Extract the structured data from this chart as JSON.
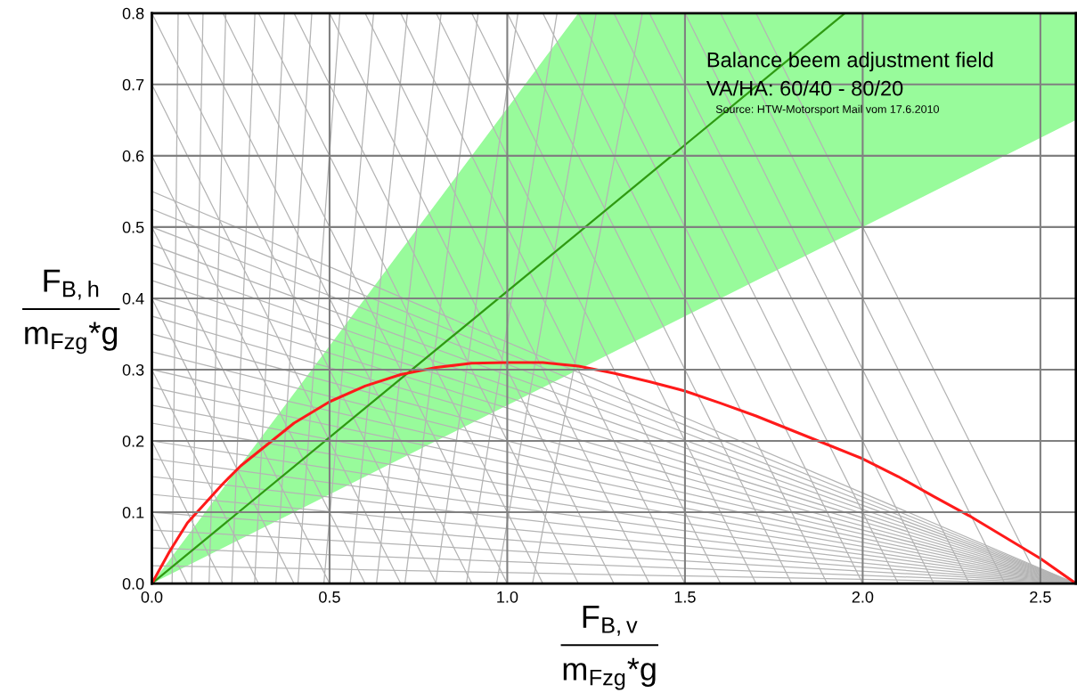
{
  "chart_data": {
    "type": "line",
    "xlabel": "F$_{B,v}$\nm$_{Fzg}$*g",
    "ylabel": "F$_{B,h}$\nm$_{Fzg}$*g",
    "annotations": [
      "Balance beem adjustment field",
      "VA/HA: 60/40 - 80/20",
      "Source: HTW-Motorsport Mail vom 17.6.2010"
    ],
    "xlim": [
      0,
      2.6
    ],
    "ylim": [
      0,
      0.8
    ],
    "xticks": [
      {
        "value": 0,
        "label": "0.0"
      },
      {
        "value": 0.5,
        "label": "0.5"
      },
      {
        "value": 1.0,
        "label": "1.0"
      },
      {
        "value": 1.5,
        "label": "1.5"
      },
      {
        "value": 2.0,
        "label": "2.0"
      },
      {
        "value": 2.5,
        "label": "2.5"
      }
    ],
    "yticks": [
      {
        "value": 0,
        "label": "0.0"
      },
      {
        "value": 0.1,
        "label": "0.1"
      },
      {
        "value": 0.2,
        "label": "0.2"
      },
      {
        "value": 0.3,
        "label": "0.3"
      },
      {
        "value": 0.4,
        "label": "0.4"
      },
      {
        "value": 0.5,
        "label": "0.5"
      },
      {
        "value": 0.6,
        "label": "0.6"
      },
      {
        "value": 0.7,
        "label": "0.7"
      },
      {
        "value": 0.8,
        "label": "0.8"
      }
    ],
    "grid": true,
    "marker": "none",
    "line_style": "solid",
    "series": [
      {
        "color": "#b4b4b4",
        "x": [
          0,
          2.6
        ],
        "values": [
          0.025,
          0
        ]
      },
      {
        "color": "#b4b4b4",
        "x": [
          0,
          2.6
        ],
        "values": [
          0.05,
          0
        ]
      },
      {
        "color": "#b4b4b4",
        "x": [
          0,
          2.6
        ],
        "values": [
          0.075,
          0
        ]
      },
      {
        "color": "#b4b4b4",
        "x": [
          0,
          2.6
        ],
        "values": [
          0.1,
          0
        ]
      },
      {
        "color": "#b4b4b4",
        "x": [
          0,
          2.6
        ],
        "values": [
          0.125,
          0
        ]
      },
      {
        "color": "#b4b4b4",
        "x": [
          0,
          2.6
        ],
        "values": [
          0.15,
          0
        ]
      },
      {
        "color": "#b4b4b4",
        "x": [
          0,
          2.6
        ],
        "values": [
          0.175,
          0
        ]
      },
      {
        "color": "#b4b4b4",
        "x": [
          0,
          2.6
        ],
        "values": [
          0.2,
          0
        ]
      },
      {
        "color": "#b4b4b4",
        "x": [
          0,
          2.6
        ],
        "values": [
          0.225,
          0
        ]
      },
      {
        "color": "#b4b4b4",
        "x": [
          0,
          2.6
        ],
        "values": [
          0.25,
          0
        ]
      },
      {
        "color": "#b4b4b4",
        "x": [
          0,
          2.6
        ],
        "values": [
          0.275,
          0
        ]
      },
      {
        "color": "#b4b4b4",
        "x": [
          0,
          2.6
        ],
        "values": [
          0.3,
          0
        ]
      },
      {
        "color": "#b4b4b4",
        "x": [
          0,
          2.6
        ],
        "values": [
          0.325,
          0
        ]
      },
      {
        "color": "#b4b4b4",
        "x": [
          0,
          2.6
        ],
        "values": [
          0.35,
          0
        ]
      },
      {
        "color": "#b4b4b4",
        "x": [
          0,
          2.6
        ],
        "values": [
          0.375,
          0
        ]
      },
      {
        "color": "#b4b4b4",
        "x": [
          0,
          2.6
        ],
        "values": [
          0.4,
          0
        ]
      },
      {
        "color": "#b4b4b4",
        "x": [
          0,
          2.6
        ],
        "values": [
          0.425,
          0
        ]
      },
      {
        "color": "#b4b4b4",
        "x": [
          0,
          2.6
        ],
        "values": [
          0.45,
          0
        ]
      },
      {
        "color": "#b4b4b4",
        "x": [
          0,
          2.6
        ],
        "values": [
          0.475,
          0
        ]
      },
      {
        "color": "#b4b4b4",
        "x": [
          0,
          2.6
        ],
        "values": [
          0.5,
          0
        ]
      },
      {
        "color": "#b4b4b4",
        "x": [
          0,
          2.6
        ],
        "values": [
          0.525,
          0
        ]
      },
      {
        "color": "#b4b4b4",
        "x": [
          0,
          2.6
        ],
        "values": [
          0.55,
          0
        ]
      },
      {
        "color": "#b4b4b4",
        "x": [
          0,
          0.1
        ],
        "values": [
          0.1,
          0
        ]
      },
      {
        "color": "#b4b4b4",
        "x": [
          0,
          0.2
        ],
        "values": [
          0.2,
          0
        ]
      },
      {
        "color": "#b4b4b4",
        "x": [
          0,
          0.3
        ],
        "values": [
          0.3,
          0
        ]
      },
      {
        "color": "#b4b4b4",
        "x": [
          0,
          0.4
        ],
        "values": [
          0.4,
          0
        ]
      },
      {
        "color": "#b4b4b4",
        "x": [
          0,
          0.5
        ],
        "values": [
          0.5,
          0
        ]
      },
      {
        "color": "#b4b4b4",
        "x": [
          0,
          0.6
        ],
        "values": [
          0.6,
          0
        ]
      },
      {
        "color": "#b4b4b4",
        "x": [
          0,
          0.7
        ],
        "values": [
          0.7,
          0
        ]
      },
      {
        "color": "#b4b4b4",
        "x": [
          0,
          0.8
        ],
        "values": [
          0.8,
          0
        ]
      },
      {
        "color": "#b4b4b4",
        "x": [
          0.1,
          0.9
        ],
        "values": [
          0.8,
          0
        ]
      },
      {
        "color": "#b4b4b4",
        "x": [
          0.2,
          1.0
        ],
        "values": [
          0.8,
          0
        ]
      },
      {
        "color": "#b4b4b4",
        "x": [
          0.3,
          1.1
        ],
        "values": [
          0.8,
          0
        ]
      },
      {
        "color": "#b4b4b4",
        "x": [
          0.4,
          1.2
        ],
        "values": [
          0.8,
          0
        ]
      },
      {
        "color": "#b4b4b4",
        "x": [
          0.5,
          1.3
        ],
        "values": [
          0.8,
          0
        ]
      },
      {
        "color": "#b4b4b4",
        "x": [
          0.6,
          1.4
        ],
        "values": [
          0.8,
          0
        ]
      },
      {
        "color": "#b4b4b4",
        "x": [
          0.7,
          1.5
        ],
        "values": [
          0.8,
          0
        ]
      },
      {
        "color": "#b4b4b4",
        "x": [
          0.8,
          1.6
        ],
        "values": [
          0.8,
          0
        ]
      },
      {
        "color": "#b4b4b4",
        "x": [
          0.9,
          1.7
        ],
        "values": [
          0.8,
          0
        ]
      },
      {
        "color": "#b4b4b4",
        "x": [
          1.0,
          1.8
        ],
        "values": [
          0.8,
          0
        ]
      },
      {
        "color": "#b4b4b4",
        "x": [
          1.1,
          1.9
        ],
        "values": [
          0.8,
          0
        ]
      },
      {
        "color": "#b4b4b4",
        "x": [
          1.2,
          2.0
        ],
        "values": [
          0.8,
          0
        ]
      },
      {
        "color": "#b4b4b4",
        "x": [
          1.3,
          2.1
        ],
        "values": [
          0.8,
          0
        ]
      },
      {
        "color": "#b4b4b4",
        "x": [
          1.4,
          2.2
        ],
        "values": [
          0.8,
          0
        ]
      },
      {
        "color": "#b4b4b4",
        "x": [
          1.5,
          2.3
        ],
        "values": [
          0.8,
          0
        ]
      },
      {
        "color": "#b4b4b4",
        "x": [
          1.6,
          2.4
        ],
        "values": [
          0.8,
          0
        ]
      },
      {
        "color": "#b4b4b4",
        "x": [
          1.7,
          2.5
        ],
        "values": [
          0.8,
          0
        ]
      },
      {
        "color": "#b4b4b4",
        "x": [
          0.057,
          0.074
        ],
        "values": [
          0,
          0.8
        ]
      },
      {
        "color": "#b4b4b4",
        "x": [
          0.112,
          0.144
        ],
        "values": [
          0,
          0.8
        ]
      },
      {
        "color": "#b4b4b4",
        "x": [
          0.161,
          0.208
        ],
        "values": [
          0,
          0.8
        ]
      },
      {
        "color": "#b4b4b4",
        "x": [
          0.225,
          0.29
        ],
        "values": [
          0,
          0.8
        ]
      },
      {
        "color": "#b4b4b4",
        "x": [
          0.289,
          0.373
        ],
        "values": [
          0,
          0.8
        ]
      },
      {
        "color": "#b4b4b4",
        "x": [
          0.349,
          0.45
        ],
        "values": [
          0,
          0.8
        ]
      },
      {
        "color": "#b4b4b4",
        "x": [
          0.411,
          0.529
        ],
        "values": [
          0,
          0.8
        ]
      },
      {
        "color": "#b4b4b4",
        "x": [
          0.484,
          0.624
        ],
        "values": [
          0,
          0.8
        ]
      },
      {
        "color": "#b4b4b4",
        "x": [
          0.558,
          0.719
        ],
        "values": [
          0,
          0.8
        ]
      },
      {
        "color": "#b4b4b4",
        "x": [
          0.632,
          0.814
        ],
        "values": [
          0,
          0.8
        ]
      },
      {
        "color": "#b4b4b4",
        "x": [
          0.712,
          0.918
        ],
        "values": [
          0,
          0.8
        ]
      },
      {
        "color": "#b4b4b4",
        "x": [
          0.799,
          1.03
        ],
        "values": [
          0,
          0.8
        ]
      },
      {
        "color": "#b4b4b4",
        "x": [
          0.885,
          1.14
        ],
        "values": [
          0,
          0.8
        ]
      },
      {
        "color": "#b4b4b4",
        "x": [
          0.97,
          1.25
        ],
        "values": [
          0,
          0.8
        ]
      },
      {
        "color": "#b4b4b4",
        "x": [
          1.071,
          1.38
        ],
        "values": [
          0,
          0.8
        ]
      },
      {
        "color": "#2f9a12",
        "x": [
          0,
          1.2,
          1.95,
          2.6
        ],
        "values": [
          0,
          0.492,
          0.8,
          null
        ],
        "lower": [
          0,
          0.3,
          0.4875,
          0.65
        ],
        "upper": [
          0,
          0.8,
          0.8,
          0.8
        ]
      },
      {
        "color": "#ff1a1a",
        "x": [
          0,
          0.05,
          0.1,
          0.2,
          0.25,
          0.3,
          0.4,
          0.5,
          0.6,
          0.7,
          0.8,
          0.9,
          1.0,
          1.1,
          1.2,
          1.3,
          1.4,
          1.5,
          1.6,
          1.7,
          1.8,
          1.9,
          2.0,
          2.1,
          2.2,
          2.3,
          2.4,
          2.5,
          2.6
        ],
        "values": [
          0,
          0.045,
          0.085,
          0.14,
          0.165,
          0.185,
          0.225,
          0.255,
          0.277,
          0.293,
          0.303,
          0.309,
          0.31,
          0.31,
          0.305,
          0.295,
          0.283,
          0.27,
          0.253,
          0.235,
          0.215,
          0.195,
          0.175,
          0.15,
          0.122,
          0.095,
          0.065,
          0.035,
          0
        ]
      }
    ]
  }
}
